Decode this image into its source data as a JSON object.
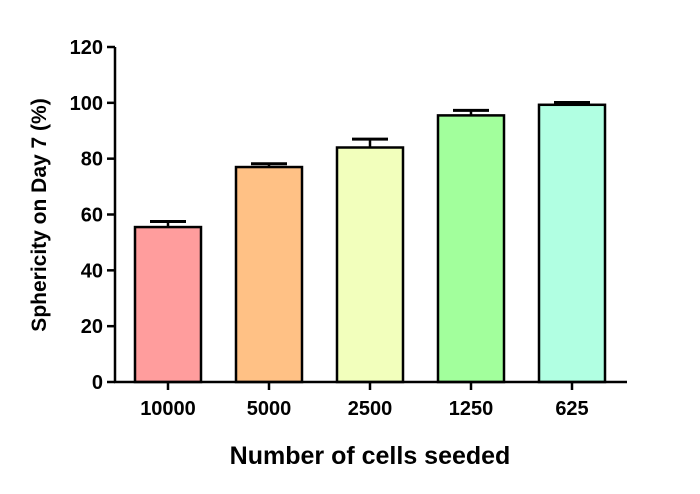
{
  "chart_data": {
    "type": "bar",
    "title": "",
    "xlabel": "Number of cells seeded",
    "ylabel": "Sphericity on Day 7 (%)",
    "categories": [
      "10000",
      "5000",
      "2500",
      "1250",
      "625"
    ],
    "values": [
      55.5,
      77,
      84,
      95.5,
      99.3
    ],
    "error_plus": [
      2.0,
      1.2,
      3.0,
      1.8,
      0.8
    ],
    "colors": [
      "#ff9d9d",
      "#ffc185",
      "#f2ffbc",
      "#a2ff9c",
      "#b1ffe2"
    ],
    "ylim": [
      0,
      120
    ],
    "yticks": [
      "0",
      "20",
      "40",
      "60",
      "80",
      "100",
      "120"
    ],
    "grid": false,
    "legend": "none"
  }
}
